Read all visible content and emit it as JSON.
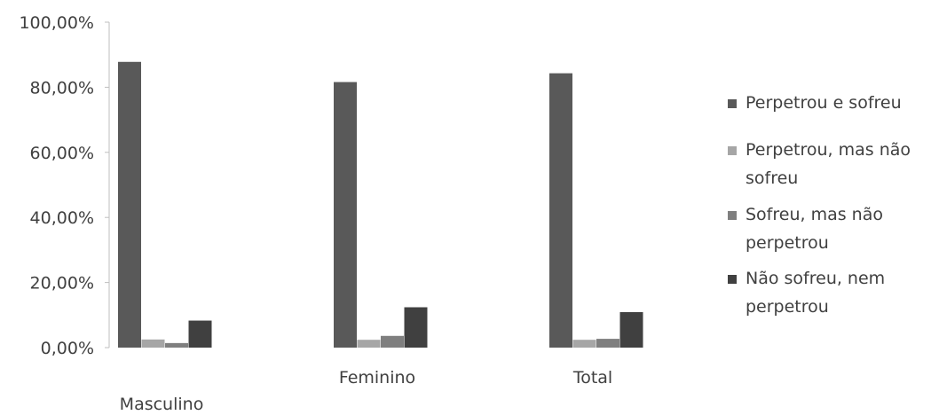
{
  "chart_data": {
    "type": "bar",
    "categories": [
      "Masculino",
      "Feminino",
      "Total"
    ],
    "series": [
      {
        "name": "Perpetrou e sofreu",
        "values": [
          87.8,
          81.6,
          84.3
        ],
        "color": "#595959"
      },
      {
        "name": "Perpetrou, mas não sofreu",
        "values": [
          2.5,
          2.4,
          2.4
        ],
        "color": "#a6a6a6"
      },
      {
        "name": "Sofreu, mas não perpetrou",
        "values": [
          1.4,
          3.6,
          2.7
        ],
        "color": "#7f7f7f"
      },
      {
        "name": "Não sofreu, nem perpetrou",
        "values": [
          8.3,
          12.4,
          10.9
        ],
        "color": "#404040"
      }
    ],
    "y_ticks": [
      "0,00%",
      "20,00%",
      "40,00%",
      "60,00%",
      "80,00%",
      "100,00%"
    ],
    "ylim": [
      0,
      100
    ],
    "grid": false,
    "legend_position": "right"
  }
}
